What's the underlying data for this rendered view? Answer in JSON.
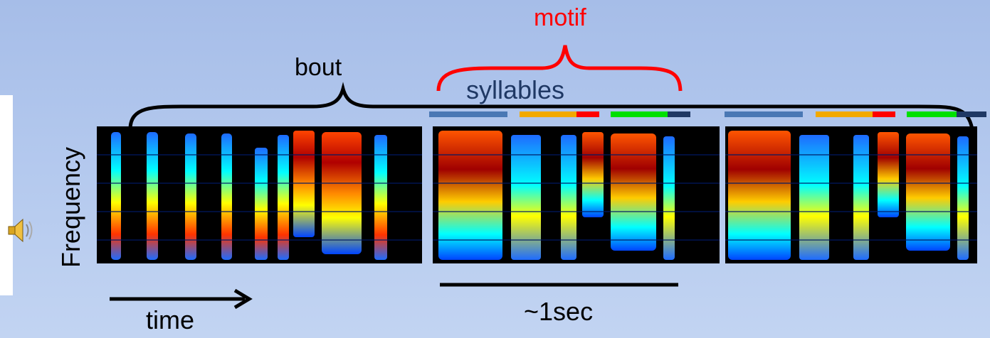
{
  "labels": {
    "bout": "bout",
    "motif": "motif",
    "syllables": "syllables",
    "frequency": "Frequency",
    "time": "time",
    "scale": "~1sec"
  },
  "icons": {
    "speaker": "speaker-icon"
  },
  "colors": {
    "background": "#b0c6ec",
    "motif": "#ff0000",
    "syllables_text": "#1f3864",
    "syllable_bars": [
      "#4a78b4",
      "#f2a900",
      "#ff0000",
      "#00e000",
      "#1f3864"
    ]
  }
}
